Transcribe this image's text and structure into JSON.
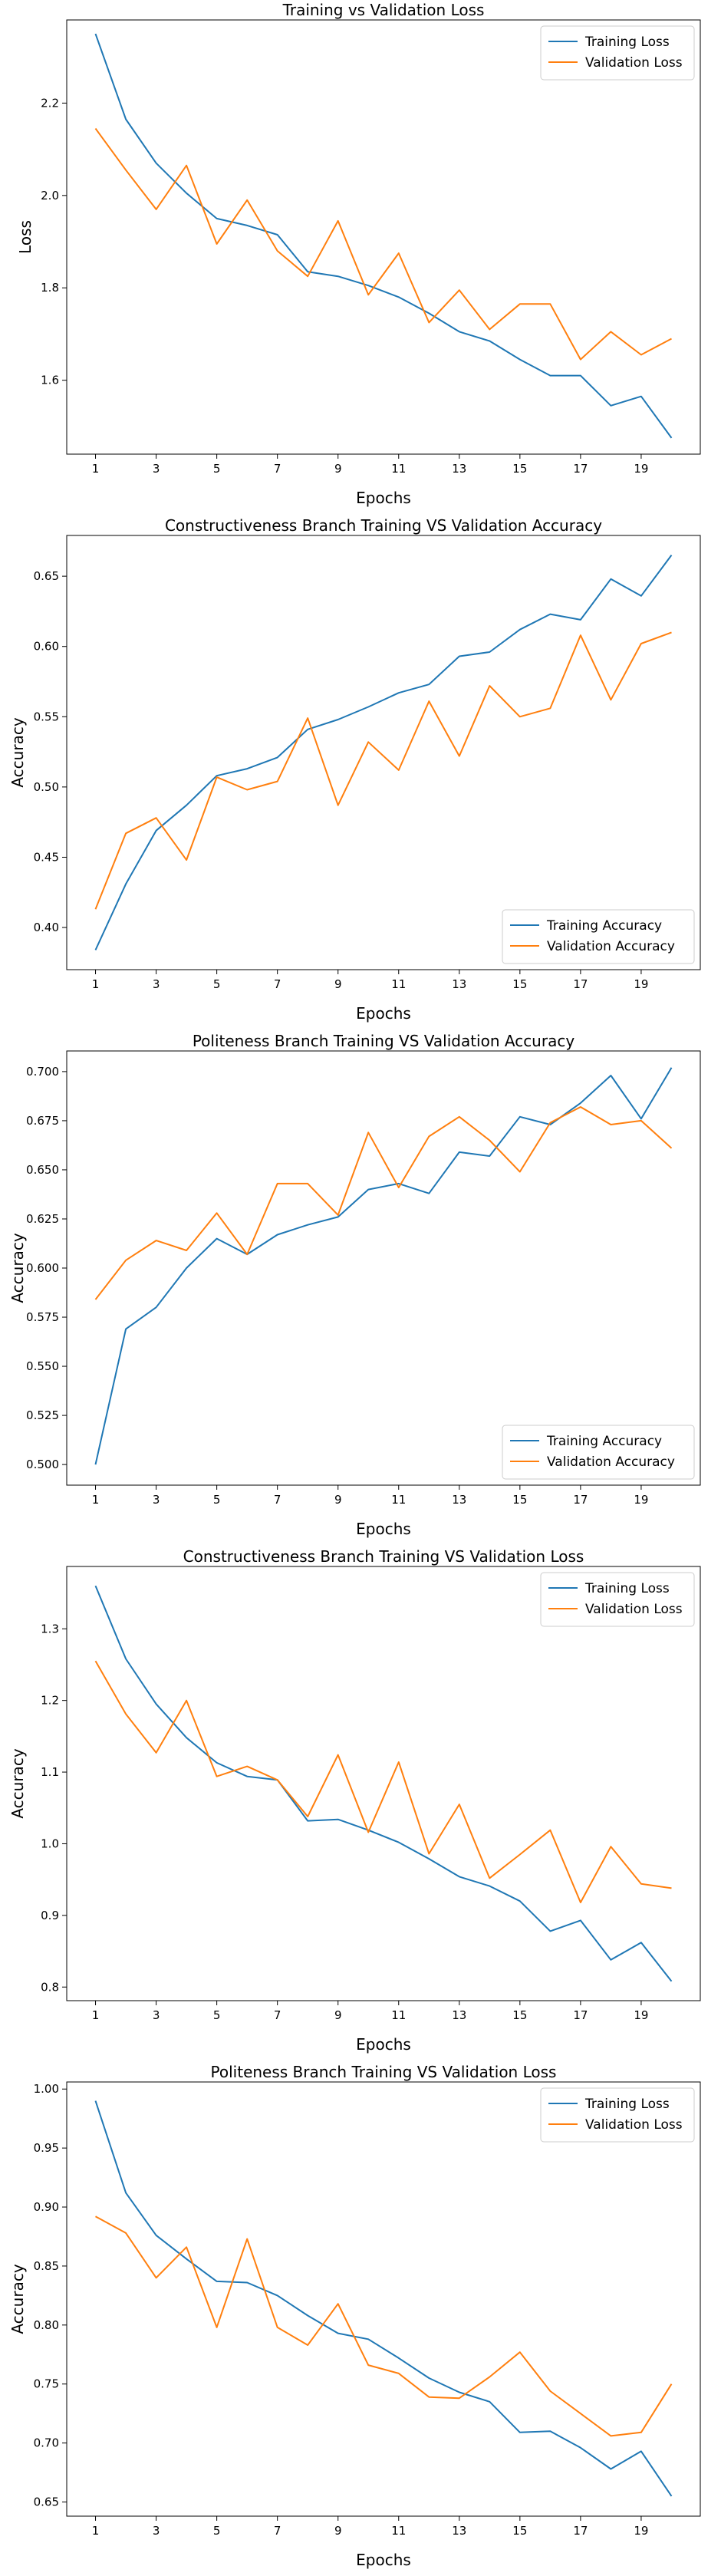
{
  "chart_data": [
    {
      "type": "line",
      "title": "Training vs Validation Loss",
      "xlabel": "Epochs",
      "ylabel": "Loss",
      "x": [
        1,
        2,
        3,
        4,
        5,
        6,
        7,
        8,
        9,
        10,
        11,
        12,
        13,
        14,
        15,
        16,
        17,
        18,
        19,
        20
      ],
      "xticks": [
        1,
        3,
        5,
        7,
        9,
        11,
        13,
        15,
        17,
        19
      ],
      "yticks": [
        1.6,
        1.8,
        2.0,
        2.2
      ],
      "ytick_labels": [
        "1.6",
        "1.8",
        "2.0",
        "2.2"
      ],
      "ylim": [
        1.44,
        2.38
      ],
      "grid": false,
      "legend_position": "upper-right",
      "series": [
        {
          "name": "Training Loss",
          "color": "#1f77b4",
          "values": [
            2.35,
            2.165,
            2.07,
            2.005,
            1.95,
            1.935,
            1.915,
            1.835,
            1.825,
            1.805,
            1.78,
            1.745,
            1.705,
            1.685,
            1.645,
            1.61,
            1.61,
            1.545,
            1.565,
            1.475
          ]
        },
        {
          "name": "Validation Loss",
          "color": "#ff7f0e",
          "values": [
            2.145,
            2.055,
            1.97,
            2.065,
            1.895,
            1.99,
            1.88,
            1.825,
            1.945,
            1.785,
            1.875,
            1.725,
            1.795,
            1.71,
            1.765,
            1.765,
            1.645,
            1.705,
            1.655,
            1.69
          ]
        }
      ]
    },
    {
      "type": "line",
      "title": "Constructiveness Branch Training VS Validation Accuracy",
      "xlabel": "Epochs",
      "ylabel": "Accuracy",
      "x": [
        1,
        2,
        3,
        4,
        5,
        6,
        7,
        8,
        9,
        10,
        11,
        12,
        13,
        14,
        15,
        16,
        17,
        18,
        19,
        20
      ],
      "xticks": [
        1,
        3,
        5,
        7,
        9,
        11,
        13,
        15,
        17,
        19
      ],
      "yticks": [
        0.4,
        0.45,
        0.5,
        0.55,
        0.6,
        0.65
      ],
      "ytick_labels": [
        "0.40",
        "0.45",
        "0.50",
        "0.55",
        "0.60",
        "0.65"
      ],
      "ylim": [
        0.37,
        0.679
      ],
      "grid": false,
      "legend_position": "lower-right",
      "series": [
        {
          "name": "Training Accuracy",
          "color": "#1f77b4",
          "values": [
            0.384,
            0.431,
            0.469,
            0.487,
            0.508,
            0.513,
            0.521,
            0.541,
            0.548,
            0.557,
            0.567,
            0.573,
            0.593,
            0.596,
            0.612,
            0.623,
            0.619,
            0.648,
            0.636,
            0.665
          ]
        },
        {
          "name": "Validation Accuracy",
          "color": "#ff7f0e",
          "values": [
            0.413,
            0.467,
            0.478,
            0.448,
            0.507,
            0.498,
            0.504,
            0.549,
            0.487,
            0.532,
            0.512,
            0.561,
            0.522,
            0.572,
            0.55,
            0.556,
            0.608,
            0.562,
            0.602,
            0.61
          ]
        }
      ]
    },
    {
      "type": "line",
      "title": "Politeness Branch Training VS Validation Accuracy",
      "xlabel": "Epochs",
      "ylabel": "Accuracy",
      "x": [
        1,
        2,
        3,
        4,
        5,
        6,
        7,
        8,
        9,
        10,
        11,
        12,
        13,
        14,
        15,
        16,
        17,
        18,
        19,
        20
      ],
      "xticks": [
        1,
        3,
        5,
        7,
        9,
        11,
        13,
        15,
        17,
        19
      ],
      "yticks": [
        0.5,
        0.525,
        0.55,
        0.575,
        0.6,
        0.625,
        0.65,
        0.675,
        0.7
      ],
      "ytick_labels": [
        "0.500",
        "0.525",
        "0.550",
        "0.575",
        "0.600",
        "0.625",
        "0.650",
        "0.675",
        "0.700"
      ],
      "ylim": [
        0.4895,
        0.7105
      ],
      "grid": false,
      "legend_position": "lower-right",
      "series": [
        {
          "name": "Training Accuracy",
          "color": "#1f77b4",
          "values": [
            0.5,
            0.569,
            0.58,
            0.6,
            0.615,
            0.607,
            0.617,
            0.622,
            0.626,
            0.64,
            0.643,
            0.638,
            0.659,
            0.657,
            0.677,
            0.673,
            0.684,
            0.698,
            0.676,
            0.702
          ]
        },
        {
          "name": "Validation Accuracy",
          "color": "#ff7f0e",
          "values": [
            0.584,
            0.604,
            0.614,
            0.609,
            0.628,
            0.607,
            0.643,
            0.643,
            0.627,
            0.669,
            0.641,
            0.667,
            0.677,
            0.665,
            0.649,
            0.674,
            0.682,
            0.673,
            0.675,
            0.661
          ]
        }
      ]
    },
    {
      "type": "line",
      "title": "Constructiveness Branch Training VS Validation Loss",
      "xlabel": "Epochs",
      "ylabel": "Accuracy",
      "x": [
        1,
        2,
        3,
        4,
        5,
        6,
        7,
        8,
        9,
        10,
        11,
        12,
        13,
        14,
        15,
        16,
        17,
        18,
        19,
        20
      ],
      "xticks": [
        1,
        3,
        5,
        7,
        9,
        11,
        13,
        15,
        17,
        19
      ],
      "yticks": [
        0.8,
        0.9,
        1.0,
        1.1,
        1.2,
        1.3
      ],
      "ytick_labels": [
        "0.8",
        "0.9",
        "1.0",
        "1.1",
        "1.2",
        "1.3"
      ],
      "ylim": [
        0.781,
        1.387
      ],
      "grid": false,
      "legend_position": "upper-right",
      "series": [
        {
          "name": "Training Loss",
          "color": "#1f77b4",
          "values": [
            1.36,
            1.258,
            1.195,
            1.148,
            1.113,
            1.094,
            1.089,
            1.032,
            1.034,
            1.019,
            1.002,
            0.979,
            0.954,
            0.941,
            0.92,
            0.878,
            0.893,
            0.838,
            0.862,
            0.808
          ]
        },
        {
          "name": "Validation Loss",
          "color": "#ff7f0e",
          "values": [
            1.255,
            1.181,
            1.127,
            1.2,
            1.094,
            1.108,
            1.089,
            1.038,
            1.124,
            1.016,
            1.114,
            0.986,
            1.055,
            0.952,
            0.985,
            1.019,
            0.918,
            0.996,
            0.944,
            0.938
          ]
        }
      ]
    },
    {
      "type": "line",
      "title": "Politeness Branch Training VS Validation Loss",
      "xlabel": "Epochs",
      "ylabel": "Accuracy",
      "x": [
        1,
        2,
        3,
        4,
        5,
        6,
        7,
        8,
        9,
        10,
        11,
        12,
        13,
        14,
        15,
        16,
        17,
        18,
        19,
        20
      ],
      "xticks": [
        1,
        3,
        5,
        7,
        9,
        11,
        13,
        15,
        17,
        19
      ],
      "yticks": [
        0.65,
        0.7,
        0.75,
        0.8,
        0.85,
        0.9,
        0.95,
        1.0
      ],
      "ytick_labels": [
        "0.65",
        "0.70",
        "0.75",
        "0.80",
        "0.85",
        "0.90",
        "0.95",
        "1.00"
      ],
      "ylim": [
        0.638,
        1.006
      ],
      "grid": false,
      "legend_position": "upper-right",
      "series": [
        {
          "name": "Training Loss",
          "color": "#1f77b4",
          "values": [
            0.99,
            0.912,
            0.876,
            0.856,
            0.837,
            0.836,
            0.825,
            0.808,
            0.793,
            0.788,
            0.772,
            0.755,
            0.743,
            0.735,
            0.709,
            0.71,
            0.696,
            0.678,
            0.693,
            0.655
          ]
        },
        {
          "name": "Validation Loss",
          "color": "#ff7f0e",
          "values": [
            0.892,
            0.878,
            0.84,
            0.866,
            0.798,
            0.873,
            0.798,
            0.783,
            0.818,
            0.766,
            0.759,
            0.739,
            0.738,
            0.756,
            0.777,
            0.744,
            0.725,
            0.706,
            0.709,
            0.75
          ]
        }
      ]
    }
  ]
}
